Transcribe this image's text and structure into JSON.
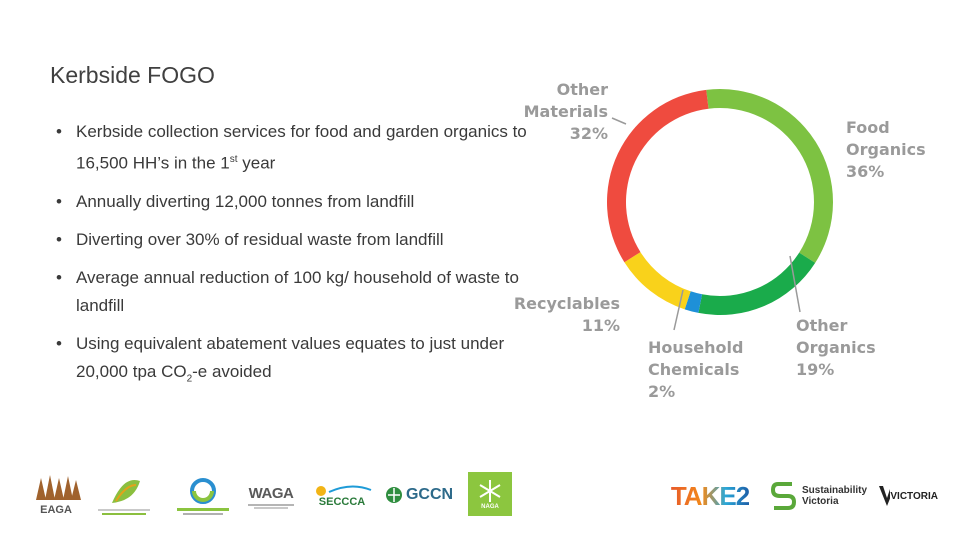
{
  "slide": {
    "title": "Kerbside FOGO",
    "bullets": [
      {
        "pre": "Kerbside collection services for food and garden organics to 16,500 HH’s in the 1",
        "sup": "st",
        "post": " year"
      },
      {
        "text": "Annually diverting 12,000 tonnes from landfill"
      },
      {
        "text": "Diverting over 30% of residual waste from landfill"
      },
      {
        "text": "Average annual reduction of 100 kg/ household of waste to landfill"
      },
      {
        "pre": "Using equivalent abatement values equates to just under 20,000 tpa CO",
        "sub": "2",
        "post": "-e avoided"
      }
    ]
  },
  "chart_data": {
    "type": "pie",
    "donut": true,
    "labels": [
      "Food Organics",
      "Other Organics",
      "Household Chemicals",
      "Recyclables",
      "Other Materials"
    ],
    "values": [
      36,
      19,
      2,
      11,
      32
    ],
    "colors": [
      "#7dc242",
      "#1aab4b",
      "#1e90d8",
      "#f9d21b",
      "#ef4b3f"
    ],
    "label_lines": [
      [
        "Food",
        "Organics",
        "36%"
      ],
      [
        "Other",
        "Organics",
        "19%"
      ],
      [
        "Household",
        "Chemicals",
        "2%"
      ],
      [
        "Recyclables",
        "11%"
      ],
      [
        "Other",
        "Materials",
        "32%"
      ]
    ]
  },
  "logos": {
    "eaga": "EAGA",
    "waga": "WAGA",
    "seccca": "SECCCA",
    "gccn": "GCCN",
    "naga": "NAGA",
    "take2": "TAKE2",
    "sv": "Sustainability Victoria",
    "vic": "VICTORIA"
  }
}
